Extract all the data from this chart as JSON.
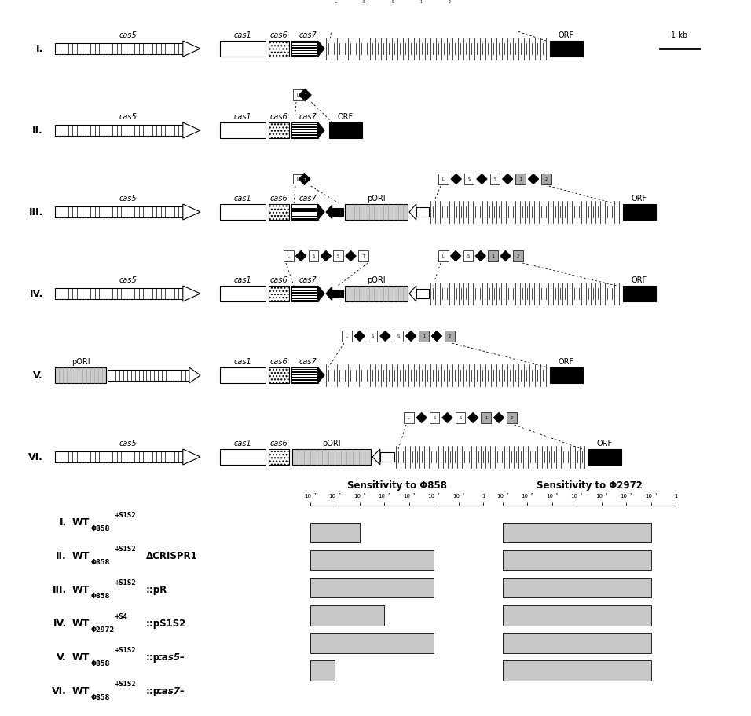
{
  "background_color": "#ffffff",
  "bar_color": "#c8c8c8",
  "phi858_values": [
    2,
    5,
    5,
    3,
    5,
    1
  ],
  "phi2972_values": [
    6,
    6,
    6,
    6,
    6,
    6
  ],
  "phi858_max": 7,
  "sensitivity_858_title": "Sensitivity to Φ858",
  "sensitivity_2972_title": "Sensitivity to Φ2972",
  "tick_labels": [
    "10⁻⁷",
    "10⁻⁶",
    "10⁻⁵",
    "10⁻⁴",
    "10⁻³",
    "10⁻²",
    "10⁻¹",
    "1"
  ]
}
